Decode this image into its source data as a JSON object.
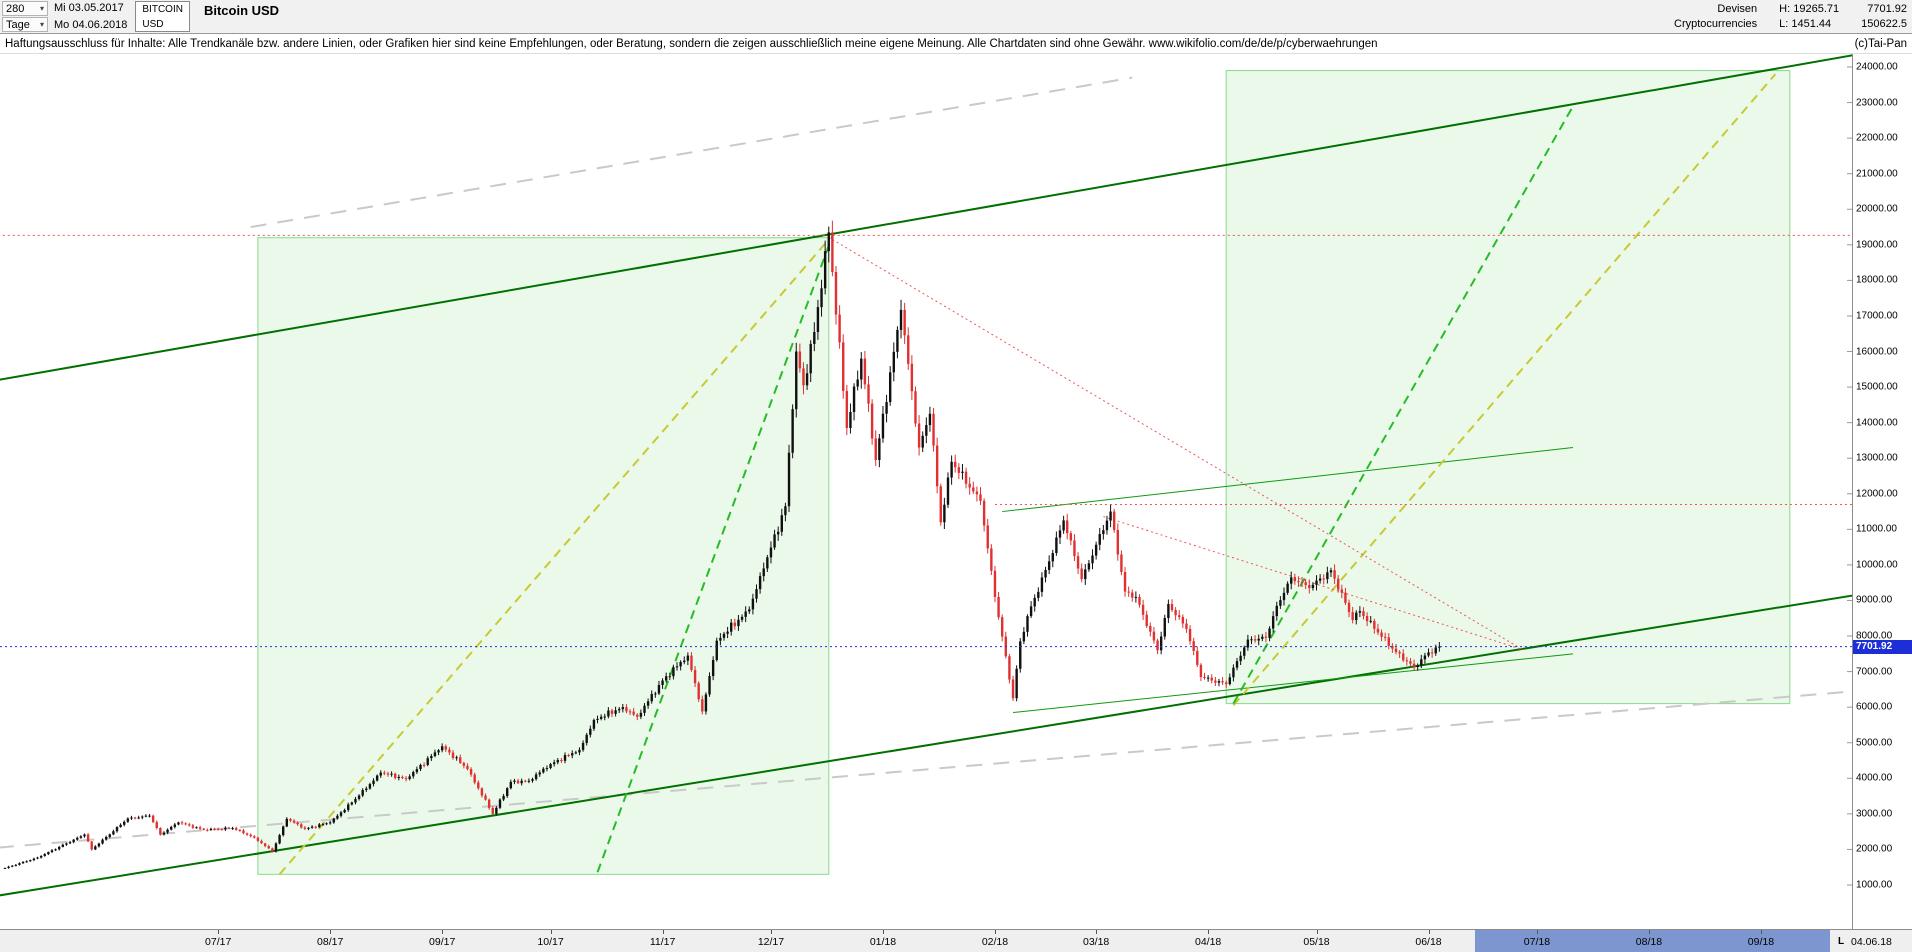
{
  "header": {
    "period_value": "280",
    "period_unit": "Tage",
    "date_from": "Mi 03.05.2017",
    "date_to": "Mo 04.06.2018",
    "symbol_line1": "BITCOIN",
    "symbol_line2": "USD",
    "title": "Bitcoin USD",
    "category_line1": "Devisen",
    "category_line2": "Cryptocurrencies",
    "high_label": "H: 19265.71",
    "low_label": "L: 1451.44",
    "last_price": "7701.92",
    "volume": "150622.5"
  },
  "disclaimer": {
    "text": "Haftungsausschluss für Inhalte: Alle Trendkanäle bzw. andere Linien, oder Grafiken hier sind keine Empfehlungen, oder Beratung, sondern die zeigen ausschließlich meine eigene Meinung. Alle Chartdaten sind ohne Gewähr.  www.wikifolio.com/de/de/p/cyberwaehrungen",
    "copyright": "(c)Tai-Pan"
  },
  "x_axis_end": {
    "marker": "L",
    "last_date": "04.06.18"
  },
  "chart_data": {
    "type": "candlestick",
    "instrument": "Bitcoin USD",
    "period": "280 Tage",
    "start_date": "2017-05-03",
    "end_date": "2018-06-04",
    "last_close": 7701.92,
    "range_high_close": 19265.71,
    "range_low": 1451.44,
    "colors": {
      "up": "#101010",
      "down": "#e03030",
      "current_price": "#2230d8",
      "box_fill": "#c3eec3",
      "box_border": "#8bd98b"
    },
    "y_axis": {
      "min": 1000,
      "max": 24000,
      "step": 1000,
      "side": "right",
      "label_format": "0.00"
    },
    "x_axis": {
      "months": [
        {
          "label": "07/17",
          "date": "2017-07-01"
        },
        {
          "label": "08/17",
          "date": "2017-08-01"
        },
        {
          "label": "09/17",
          "date": "2017-09-01"
        },
        {
          "label": "10/17",
          "date": "2017-10-01"
        },
        {
          "label": "11/17",
          "date": "2017-11-01"
        },
        {
          "label": "12/17",
          "date": "2017-12-01"
        },
        {
          "label": "01/18",
          "date": "2018-01-01"
        },
        {
          "label": "02/18",
          "date": "2018-02-01"
        },
        {
          "label": "03/18",
          "date": "2018-03-01"
        },
        {
          "label": "04/18",
          "date": "2018-04-01"
        },
        {
          "label": "05/18",
          "date": "2018-05-01"
        },
        {
          "label": "06/18",
          "date": "2018-06-01"
        },
        {
          "label": "07/18",
          "date": "2018-07-01"
        },
        {
          "label": "08/18",
          "date": "2018-08-01"
        },
        {
          "label": "09/18",
          "date": "2018-09-01"
        }
      ],
      "future_region": {
        "from": "2018-06-14",
        "to": "2018-09-20",
        "color": "#7e96cf"
      }
    },
    "approx_daily_close_anchors": [
      [
        "2017-05-03",
        1480
      ],
      [
        "2017-05-12",
        1770
      ],
      [
        "2017-05-25",
        2420
      ],
      [
        "2017-05-27",
        2000
      ],
      [
        "2017-06-06",
        2870
      ],
      [
        "2017-06-12",
        2950
      ],
      [
        "2017-06-15",
        2420
      ],
      [
        "2017-06-20",
        2760
      ],
      [
        "2017-06-27",
        2550
      ],
      [
        "2017-07-05",
        2600
      ],
      [
        "2017-07-11",
        2330
      ],
      [
        "2017-07-16",
        1940
      ],
      [
        "2017-07-20",
        2860
      ],
      [
        "2017-07-25",
        2580
      ],
      [
        "2017-08-01",
        2760
      ],
      [
        "2017-08-08",
        3420
      ],
      [
        "2017-08-15",
        4160
      ],
      [
        "2017-08-22",
        3980
      ],
      [
        "2017-09-01",
        4900
      ],
      [
        "2017-09-08",
        4260
      ],
      [
        "2017-09-15",
        3000
      ],
      [
        "2017-09-20",
        3900
      ],
      [
        "2017-09-25",
        3930
      ],
      [
        "2017-10-01",
        4400
      ],
      [
        "2017-10-09",
        4800
      ],
      [
        "2017-10-13",
        5640
      ],
      [
        "2017-10-21",
        6000
      ],
      [
        "2017-10-25",
        5730
      ],
      [
        "2017-11-01",
        6750
      ],
      [
        "2017-11-08",
        7450
      ],
      [
        "2017-11-12",
        5880
      ],
      [
        "2017-11-16",
        7870
      ],
      [
        "2017-11-25",
        8750
      ],
      [
        "2017-11-29",
        9900
      ],
      [
        "2017-12-05",
        11650
      ],
      [
        "2017-12-08",
        16000
      ],
      [
        "2017-12-10",
        15050
      ],
      [
        "2017-12-13",
        16550
      ],
      [
        "2017-12-17",
        19350
      ],
      [
        "2017-12-22",
        13850
      ],
      [
        "2017-12-26",
        15800
      ],
      [
        "2017-12-30",
        12950
      ],
      [
        "2018-01-06",
        17170
      ],
      [
        "2018-01-11",
        13300
      ],
      [
        "2018-01-14",
        14250
      ],
      [
        "2018-01-17",
        11200
      ],
      [
        "2018-01-20",
        12900
      ],
      [
        "2018-01-28",
        11800
      ],
      [
        "2018-02-01",
        9100
      ],
      [
        "2018-02-06",
        6250
      ],
      [
        "2018-02-08",
        7850
      ],
      [
        "2018-02-10",
        8560
      ],
      [
        "2018-02-16",
        10100
      ],
      [
        "2018-02-20",
        11250
      ],
      [
        "2018-02-25",
        9600
      ],
      [
        "2018-03-05",
        11500
      ],
      [
        "2018-03-09",
        9250
      ],
      [
        "2018-03-12",
        9100
      ],
      [
        "2018-03-18",
        7600
      ],
      [
        "2018-03-21",
        8900
      ],
      [
        "2018-03-26",
        8200
      ],
      [
        "2018-03-30",
        6850
      ],
      [
        "2018-04-06",
        6650
      ],
      [
        "2018-04-12",
        7900
      ],
      [
        "2018-04-17",
        7950
      ],
      [
        "2018-04-20",
        8850
      ],
      [
        "2018-04-24",
        9650
      ],
      [
        "2018-04-29",
        9350
      ],
      [
        "2018-05-05",
        9850
      ],
      [
        "2018-05-11",
        8450
      ],
      [
        "2018-05-13",
        8700
      ],
      [
        "2018-05-18",
        8100
      ],
      [
        "2018-05-23",
        7550
      ],
      [
        "2018-05-28",
        7130
      ],
      [
        "2018-06-01",
        7540
      ],
      [
        "2018-06-04",
        7701.92
      ]
    ],
    "synthesis": {
      "wiggle": 0.015,
      "wick": 0.006,
      "wick_var": 0.011
    },
    "overlays": {
      "boxes": [
        {
          "name": "rally-box-2017",
          "from": "2017-07-12",
          "to": "2017-12-17",
          "price_low": 1300,
          "price_high": 19200,
          "opacity": 0.35
        },
        {
          "name": "rally-box-projection-2018",
          "from": "2018-04-06",
          "to": "2018-09-09",
          "price_low": 6100,
          "price_high": 23900,
          "opacity": 0.35
        }
      ],
      "trendlines": [
        {
          "name": "gray-trend-upper",
          "x1": "2017-07-10",
          "p1": 19500,
          "x2": "2018-03-11",
          "p2": 23700,
          "color": "#c9c9c9",
          "width": 2,
          "style": "longdash"
        },
        {
          "name": "gray-trend-lower",
          "x1": "2017-05-01",
          "p1": 2050,
          "x2": "2018-09-27",
          "p2": 6450,
          "color": "#c9c9c9",
          "width": 2,
          "style": "longdash"
        },
        {
          "name": "channel-upper",
          "x1": "2017-05-01",
          "p1": 15200,
          "x2": "2018-09-27",
          "p2": 24340,
          "color": "#007000",
          "width": 2,
          "style": "solid"
        },
        {
          "name": "channel-lower",
          "x1": "2017-05-01",
          "p1": 700,
          "x2": "2018-09-27",
          "p2": 9150,
          "color": "#007000",
          "width": 2,
          "style": "solid"
        },
        {
          "name": "resistance-mid",
          "x1": "2018-02-03",
          "p1": 11500,
          "x2": "2018-07-11",
          "p2": 13300,
          "color": "#119911",
          "width": 1,
          "style": "solid"
        },
        {
          "name": "support-mid",
          "x1": "2018-02-06",
          "p1": 5850,
          "x2": "2018-07-11",
          "p2": 7500,
          "color": "#119911",
          "width": 1,
          "style": "solid"
        },
        {
          "name": "rally-trend-yellow-2017",
          "x1": "2017-07-18",
          "p1": 1300,
          "x2": "2017-12-17",
          "p2": 19150,
          "color": "#c9c932",
          "width": 2,
          "style": "dashed"
        },
        {
          "name": "rally-trend-yellow-projection",
          "x1": "2018-04-08",
          "p1": 6050,
          "x2": "2018-09-05",
          "p2": 23800,
          "color": "#c9c932",
          "width": 2,
          "style": "dashed"
        },
        {
          "name": "rally-trend-green-2017",
          "x1": "2017-10-14",
          "p1": 1360,
          "x2": "2017-12-18",
          "p2": 19250,
          "color": "#28bb28",
          "width": 2,
          "style": "dashed"
        },
        {
          "name": "rally-trend-green-projection",
          "x1": "2018-04-08",
          "p1": 6100,
          "x2": "2018-07-11",
          "p2": 22900,
          "color": "#28bb28",
          "width": 2,
          "style": "dashed"
        },
        {
          "name": "decline-dotted-from-peak",
          "x1": "2017-12-18",
          "p1": 19150,
          "x2": "2018-06-27",
          "p2": 7620,
          "color": "#ee5555",
          "width": 1,
          "style": "dotted"
        },
        {
          "name": "decline-dotted-from-march-high",
          "x1": "2018-03-03",
          "p1": 11360,
          "x2": "2018-06-27",
          "p2": 7620,
          "color": "#ee5555",
          "width": 1,
          "style": "dotted"
        }
      ],
      "horizontal_lines": [
        {
          "name": "high-close-level",
          "price": 19265.71,
          "from": "2017-05-01",
          "to": "2018-09-27",
          "color": "#ee5555",
          "style": "dotted"
        },
        {
          "name": "february-high-level",
          "price": 11700,
          "from": "2018-02-01",
          "to": "2018-09-27",
          "color": "#ee5555",
          "style": "dotted"
        }
      ],
      "current_price_line": {
        "price": 7701.92,
        "style": "dotted"
      }
    }
  }
}
